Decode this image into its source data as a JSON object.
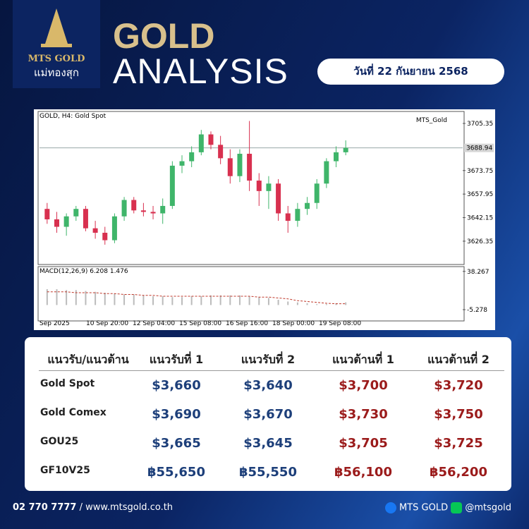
{
  "brand": {
    "name": "MTS GOLD",
    "thai": "แม่ทองสุก"
  },
  "header": {
    "title1": "GOLD",
    "title2": "ANALYSIS",
    "date": "วันที่ 22 กันยายน 2568"
  },
  "chart_data": {
    "type": "candlestick",
    "title": "GOLD, H4:  Gold Spot",
    "indicator": "MTS_Gold",
    "up_color": "#3fb56a",
    "down_color": "#d8304f",
    "candles": {
      "open": [
        3648,
        3641,
        3636,
        3643,
        3648,
        3635,
        3632,
        3627,
        3643,
        3654,
        3647,
        3646,
        3645,
        3650,
        3677,
        3680,
        3686,
        3698,
        3691,
        3682,
        3670,
        3685,
        3667,
        3660,
        3665,
        3645,
        3640,
        3648,
        3652,
        3665,
        3680,
        3686
      ],
      "high": [
        3652,
        3646,
        3645,
        3650,
        3650,
        3640,
        3636,
        3645,
        3656,
        3656,
        3652,
        3650,
        3655,
        3680,
        3684,
        3690,
        3701,
        3700,
        3697,
        3688,
        3688,
        3707,
        3672,
        3670,
        3668,
        3650,
        3652,
        3656,
        3668,
        3682,
        3690,
        3694
      ],
      "low": [
        3638,
        3632,
        3630,
        3640,
        3633,
        3628,
        3624,
        3625,
        3640,
        3645,
        3643,
        3641,
        3638,
        3648,
        3672,
        3676,
        3684,
        3688,
        3678,
        3665,
        3666,
        3660,
        3650,
        3648,
        3640,
        3632,
        3636,
        3644,
        3648,
        3662,
        3676,
        3684
      ],
      "close": [
        3641,
        3636,
        3643,
        3648,
        3635,
        3632,
        3627,
        3643,
        3654,
        3647,
        3646,
        3645,
        3650,
        3677,
        3680,
        3686,
        3698,
        3691,
        3682,
        3670,
        3685,
        3667,
        3660,
        3665,
        3645,
        3640,
        3648,
        3652,
        3665,
        3680,
        3686,
        3689
      ]
    },
    "ylim": [
      3610.7,
      3713.4
    ],
    "yticks": [
      3705.35,
      3673.75,
      3657.95,
      3642.15,
      3626.35
    ],
    "current": 3688.94,
    "x_labels": [
      "Sep 2025",
      "10 Sep 20:00",
      "12 Sep 04:00",
      "15 Sep 08:00",
      "16 Sep 16:00",
      "18 Sep 00:00",
      "19 Sep 08:00"
    ],
    "macd": {
      "label": "MACD(12,26,9) 6.208 1.476",
      "histogram": [
        18,
        18,
        17,
        17,
        16,
        15,
        14,
        13,
        12,
        12,
        11,
        10,
        10,
        9,
        9,
        10,
        10,
        11,
        11,
        11,
        11,
        10,
        9,
        8,
        6,
        4,
        3,
        2,
        1,
        1,
        2,
        3
      ],
      "signal": [
        15,
        15,
        15,
        14,
        14,
        14,
        13,
        13,
        12,
        12,
        11,
        11,
        10,
        10,
        10,
        10,
        10,
        10,
        10,
        10,
        10,
        10,
        9,
        9,
        8,
        7,
        5,
        4,
        3,
        2,
        1.5,
        1.5
      ],
      "ylim": [
        -16.5,
        41.3
      ],
      "yticks": [
        38.267,
        -5.278
      ]
    }
  },
  "table": {
    "header": [
      "แนวรับ/แนวต้าน",
      "แนวรับที่ 1",
      "แนวรับที่ 2",
      "แนวต้านที่ 1",
      "แนวต้านที่ 2"
    ],
    "rows": [
      [
        "Gold Spot",
        "$3,660",
        "$3,640",
        "$3,700",
        "$3,720"
      ],
      [
        "Gold Comex",
        "$3,690",
        "$3,670",
        "$3,730",
        "$3,750"
      ],
      [
        "GOU25",
        "$3,665",
        "$3,645",
        "$3,705",
        "$3,725"
      ],
      [
        "GF10V25",
        "฿55,650",
        "฿55,550",
        "฿56,100",
        "฿56,200"
      ]
    ]
  },
  "footer": {
    "phone": "02 770 7777",
    "site": "/ www.mtsgold.co.th",
    "facebook": "MTS GOLD",
    "line": "@mtsgold"
  }
}
